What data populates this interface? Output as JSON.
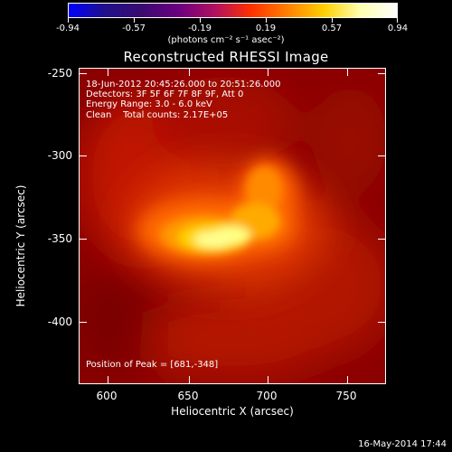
{
  "colorbar": {
    "tick_labels": [
      "-0.94",
      "-0.57",
      "-0.19",
      "0.19",
      "0.57",
      "0.94"
    ],
    "units_label": "(photons cm⁻² s⁻¹ asec⁻²)",
    "colormap": [
      "#0000ff",
      "#20108a",
      "#3a0a70",
      "#6a0080",
      "#b01060",
      "#ff3000",
      "#ff8000",
      "#ffd000",
      "#ffffb0",
      "#ffffff"
    ]
  },
  "title": "Reconstructed RHESSI Image",
  "info": {
    "time_range": "18-Jun-2012 20:45:26.000 to 20:51:26.000",
    "detectors": "Detectors: 3F 5F 6F 7F 8F 9F, Att 0",
    "energy": "Energy Range: 3.0 - 6.0 keV",
    "clean": "Clean    Total counts: 2.17E+05",
    "peak": "Position of Peak = [681,-348]"
  },
  "axes": {
    "xlabel": "Heliocentric X (arcsec)",
    "ylabel": "Heliocentric Y (arcsec)",
    "xticks": [
      "600",
      "650",
      "700",
      "750"
    ],
    "yticks": [
      "-250",
      "-300",
      "-350",
      "-400"
    ]
  },
  "footer_date": "16-May-2014 17:44"
}
